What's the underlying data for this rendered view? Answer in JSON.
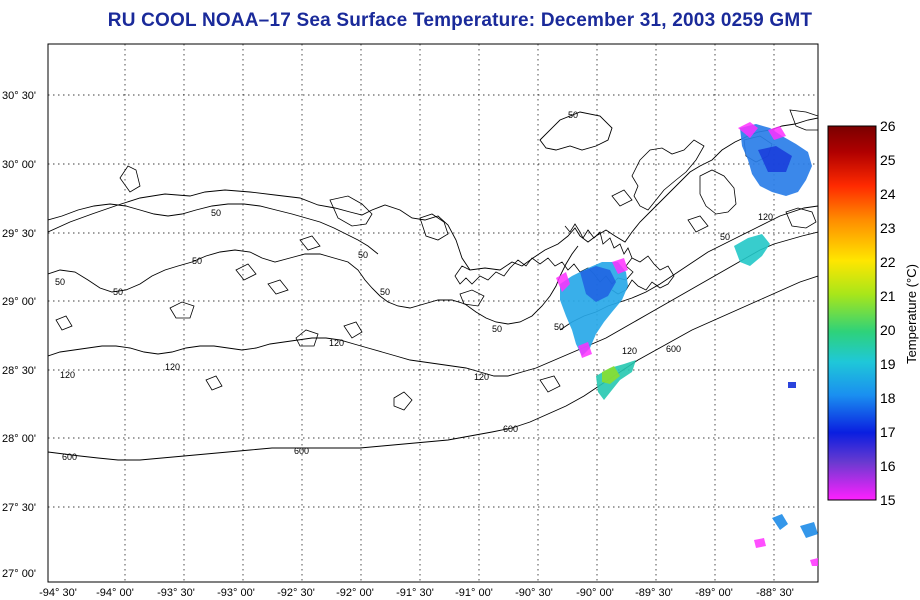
{
  "title": "RU COOL  NOAA–17  Sea Surface Temperature:  December 31, 2003 0259 GMT",
  "map": {
    "lat_labels": [
      "30° 30'",
      "30° 00'",
      "29° 30'",
      "29° 00'",
      "28° 30'",
      "28° 00'",
      "27° 30'",
      "27° 00'"
    ],
    "lon_labels": [
      "-94° 30'",
      "-94° 00'",
      "-93° 30'",
      "-93° 00'",
      "-92° 30'",
      "-92° 00'",
      "-91° 30'",
      "-91° 00'",
      "-90° 30'",
      "-90° 00'",
      "-89° 30'",
      "-89° 00'",
      "-88° 30'"
    ],
    "contour_labels": {
      "c50": "50",
      "c120": "120",
      "c600": "600"
    }
  },
  "colorbar": {
    "title": "Temperature (°C)",
    "ticks": [
      "26",
      "25",
      "24",
      "23",
      "22",
      "21",
      "20",
      "19",
      "18",
      "17",
      "16",
      "15"
    ],
    "colors": [
      "#8b0000",
      "#cc0000",
      "#ff3300",
      "#ff9900",
      "#ffee00",
      "#aaee00",
      "#33dd55",
      "#22cccc",
      "#2299ee",
      "#1133dd",
      "#5533cc",
      "#ff22ff"
    ]
  }
}
